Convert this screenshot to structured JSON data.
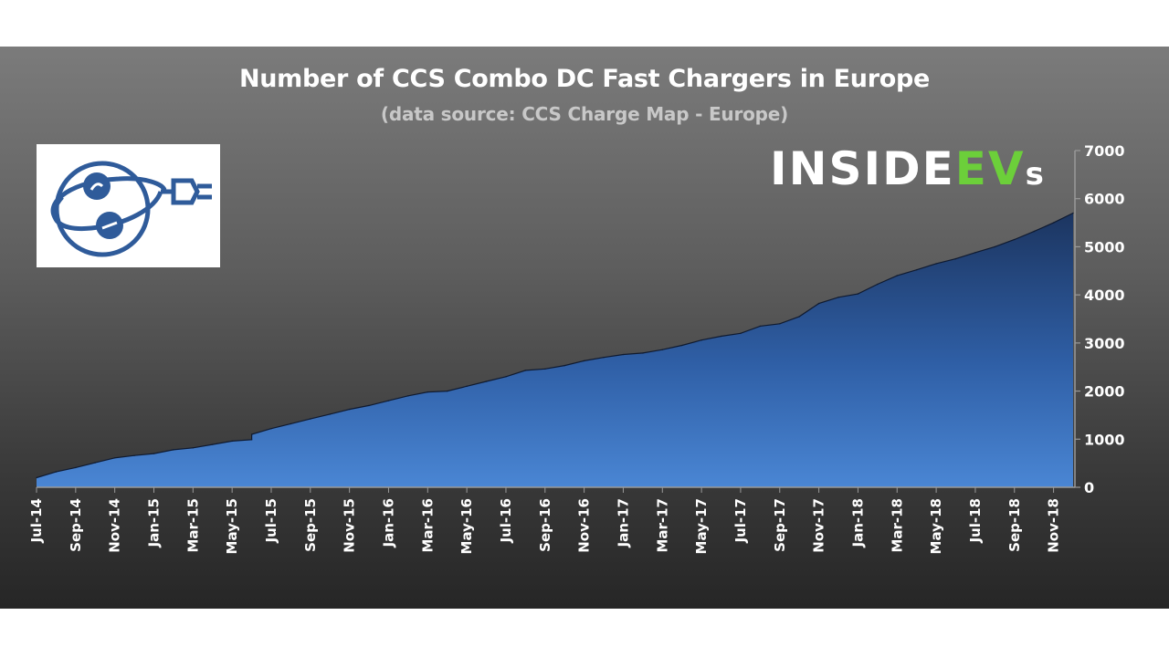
{
  "chart_data": {
    "type": "area",
    "title": "Number of CCS Combo DC Fast Chargers in Europe",
    "subtitle": "(data source: CCS Charge Map - Europe)",
    "brand": {
      "part1": "INSIDE",
      "part2": "EV",
      "part3": "s",
      "accent_color": "#6ccf3a"
    },
    "ylim": [
      0,
      7000
    ],
    "yticks": [
      "0",
      "1000",
      "2000",
      "3000",
      "4000",
      "5000",
      "6000",
      "7000"
    ],
    "xlabels": [
      "Jul-14",
      "Sep-14",
      "Nov-14",
      "Jan-15",
      "Mar-15",
      "May-15",
      "Jul-15",
      "Sep-15",
      "Nov-15",
      "Jan-16",
      "Mar-16",
      "May-16",
      "Jul-16",
      "Sep-16",
      "Nov-16",
      "Jan-17",
      "Mar-17",
      "May-17",
      "Jul-17",
      "Sep-17",
      "Nov-17",
      "Jan-18",
      "Mar-18",
      "May-18",
      "Jul-18",
      "Sep-18",
      "Nov-18"
    ],
    "x_start": "2014-07",
    "x_end": "2018-12",
    "series": [
      {
        "color": "#3a6fc4",
        "points": [
          [
            "2014-07",
            200
          ],
          [
            "2014-08",
            320
          ],
          [
            "2014-09",
            410
          ],
          [
            "2014-10",
            510
          ],
          [
            "2014-11",
            610
          ],
          [
            "2014-12",
            660
          ],
          [
            "2015-01",
            700
          ],
          [
            "2015-02",
            780
          ],
          [
            "2015-03",
            820
          ],
          [
            "2015-04",
            890
          ],
          [
            "2015-05",
            960
          ],
          [
            "2015-06",
            990
          ],
          [
            "2015-06",
            1100
          ],
          [
            "2015-07",
            1220
          ],
          [
            "2015-08",
            1320
          ],
          [
            "2015-09",
            1420
          ],
          [
            "2015-10",
            1520
          ],
          [
            "2015-11",
            1620
          ],
          [
            "2015-12",
            1700
          ],
          [
            "2016-01",
            1800
          ],
          [
            "2016-02",
            1900
          ],
          [
            "2016-03",
            1980
          ],
          [
            "2016-04",
            2000
          ],
          [
            "2016-05",
            2100
          ],
          [
            "2016-06",
            2200
          ],
          [
            "2016-07",
            2300
          ],
          [
            "2016-08",
            2430
          ],
          [
            "2016-09",
            2460
          ],
          [
            "2016-10",
            2530
          ],
          [
            "2016-11",
            2630
          ],
          [
            "2016-12",
            2700
          ],
          [
            "2017-01",
            2760
          ],
          [
            "2017-02",
            2790
          ],
          [
            "2017-03",
            2860
          ],
          [
            "2017-04",
            2950
          ],
          [
            "2017-05",
            3060
          ],
          [
            "2017-06",
            3140
          ],
          [
            "2017-07",
            3200
          ],
          [
            "2017-08",
            3350
          ],
          [
            "2017-09",
            3400
          ],
          [
            "2017-10",
            3550
          ],
          [
            "2017-11",
            3820
          ],
          [
            "2017-12",
            3950
          ],
          [
            "2018-01",
            4020
          ],
          [
            "2018-02",
            4220
          ],
          [
            "2018-03",
            4400
          ],
          [
            "2018-04",
            4520
          ],
          [
            "2018-05",
            4650
          ],
          [
            "2018-06",
            4750
          ],
          [
            "2018-07",
            4880
          ],
          [
            "2018-08",
            5000
          ],
          [
            "2018-09",
            5150
          ],
          [
            "2018-10",
            5320
          ],
          [
            "2018-11",
            5500
          ],
          [
            "2018-12",
            5700
          ]
        ]
      }
    ]
  },
  "icons": {
    "logo": "plug-charger-icon"
  }
}
